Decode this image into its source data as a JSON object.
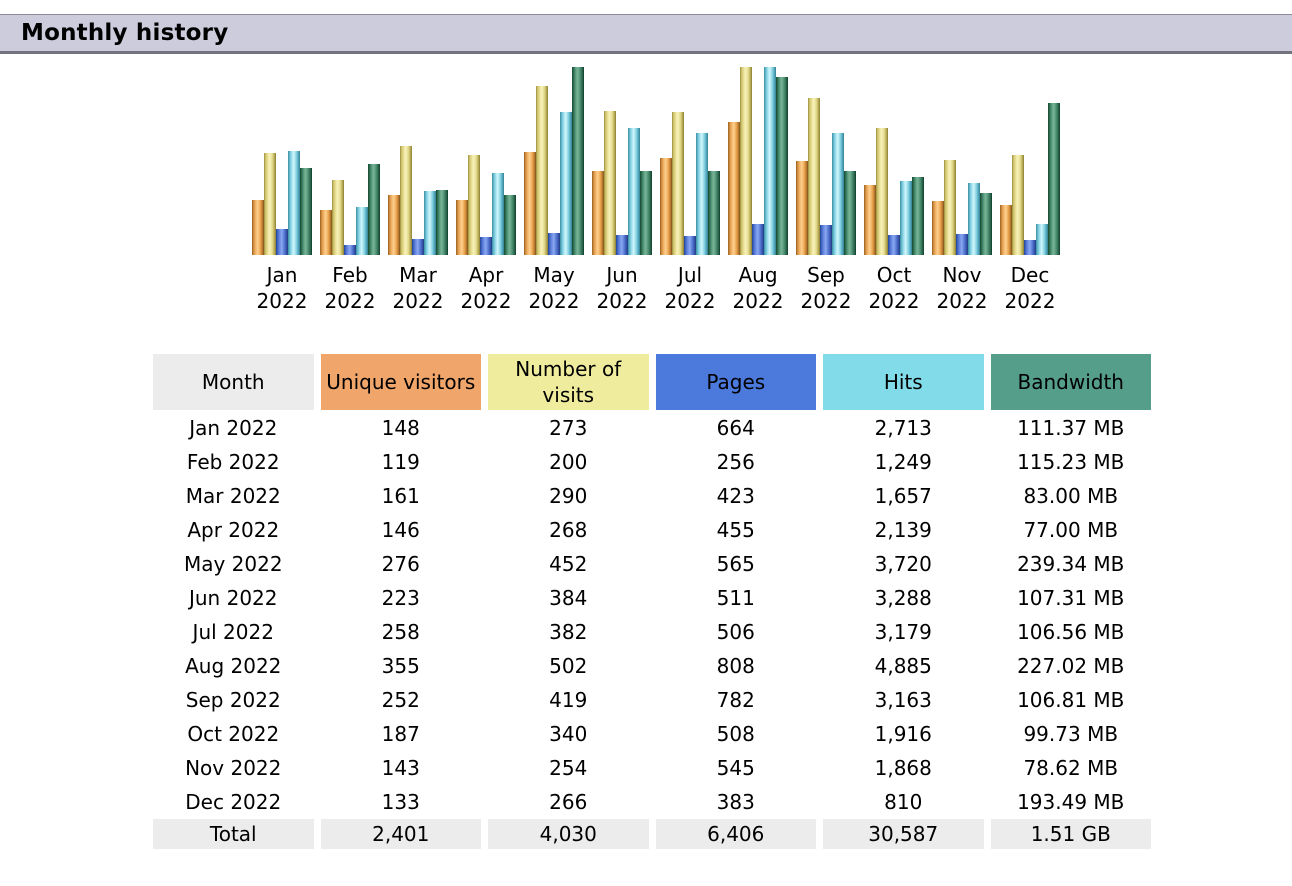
{
  "header": {
    "title": "Monthly history"
  },
  "colors": {
    "section_header_bg": "#ccccdd",
    "section_header_border": "#73737f",
    "neutral_cell_bg": "#ececec",
    "unique_visitors": "#f0a56a",
    "number_of_visits": "#f0ec9e",
    "pages": "#4b79dc",
    "hits": "#82dbe9",
    "bandwidth": "#559e89"
  },
  "chart_data": {
    "type": "bar",
    "title": "Monthly history",
    "xlabel": "",
    "ylabel": "",
    "legend_position": "none",
    "grid": false,
    "axes_drawn": false,
    "note": "Each scale group is normalized independently to the chart height: unique visitors and visits share the visits maximum; pages and hits share the hits maximum; bandwidth uses its own maximum.",
    "categories": [
      "Jan 2022",
      "Feb 2022",
      "Mar 2022",
      "Apr 2022",
      "May 2022",
      "Jun 2022",
      "Jul 2022",
      "Aug 2022",
      "Sep 2022",
      "Oct 2022",
      "Nov 2022",
      "Dec 2022"
    ],
    "series": [
      {
        "name": "Unique visitors",
        "key": "unique",
        "color": "#f0a56a",
        "scale_group": "visits",
        "values": [
          148,
          119,
          161,
          146,
          276,
          223,
          258,
          355,
          252,
          187,
          143,
          133
        ]
      },
      {
        "name": "Number of visits",
        "key": "visits",
        "color": "#f0ec9e",
        "scale_group": "visits",
        "values": [
          273,
          200,
          290,
          268,
          452,
          384,
          382,
          502,
          419,
          340,
          254,
          266
        ]
      },
      {
        "name": "Pages",
        "key": "pages",
        "color": "#4b79dc",
        "scale_group": "hits",
        "values": [
          664,
          256,
          423,
          455,
          565,
          511,
          506,
          808,
          782,
          508,
          545,
          383
        ]
      },
      {
        "name": "Hits",
        "key": "hits",
        "color": "#82dbe9",
        "scale_group": "hits",
        "values": [
          2713,
          1249,
          1657,
          2139,
          3720,
          3288,
          3179,
          4885,
          3163,
          1916,
          1868,
          810
        ]
      },
      {
        "name": "Bandwidth (MB)",
        "key": "bandwidth",
        "color": "#559e89",
        "scale_group": "bandwidth",
        "values": [
          111.37,
          115.23,
          83.0,
          77.0,
          239.34,
          107.31,
          106.56,
          227.02,
          106.81,
          99.73,
          78.62,
          193.49
        ]
      }
    ]
  },
  "table": {
    "columns": [
      {
        "key": "month",
        "label": "Month"
      },
      {
        "key": "unique",
        "label": "Unique visitors"
      },
      {
        "key": "visits",
        "label": "Number of visits"
      },
      {
        "key": "pages",
        "label": "Pages"
      },
      {
        "key": "hits",
        "label": "Hits"
      },
      {
        "key": "bandwidth",
        "label": "Bandwidth"
      }
    ],
    "rows": [
      [
        "Jan 2022",
        "148",
        "273",
        "664",
        "2,713",
        "111.37 MB"
      ],
      [
        "Feb 2022",
        "119",
        "200",
        "256",
        "1,249",
        "115.23 MB"
      ],
      [
        "Mar 2022",
        "161",
        "290",
        "423",
        "1,657",
        "83.00 MB"
      ],
      [
        "Apr 2022",
        "146",
        "268",
        "455",
        "2,139",
        "77.00 MB"
      ],
      [
        "May 2022",
        "276",
        "452",
        "565",
        "3,720",
        "239.34 MB"
      ],
      [
        "Jun 2022",
        "223",
        "384",
        "511",
        "3,288",
        "107.31 MB"
      ],
      [
        "Jul 2022",
        "258",
        "382",
        "506",
        "3,179",
        "106.56 MB"
      ],
      [
        "Aug 2022",
        "355",
        "502",
        "808",
        "4,885",
        "227.02 MB"
      ],
      [
        "Sep 2022",
        "252",
        "419",
        "782",
        "3,163",
        "106.81 MB"
      ],
      [
        "Oct 2022",
        "187",
        "340",
        "508",
        "1,916",
        "99.73 MB"
      ],
      [
        "Nov 2022",
        "143",
        "254",
        "545",
        "1,868",
        "78.62 MB"
      ],
      [
        "Dec 2022",
        "133",
        "266",
        "383",
        "810",
        "193.49 MB"
      ]
    ],
    "total_row": [
      "Total",
      "2,401",
      "4,030",
      "6,406",
      "30,587",
      "1.51 GB"
    ]
  }
}
